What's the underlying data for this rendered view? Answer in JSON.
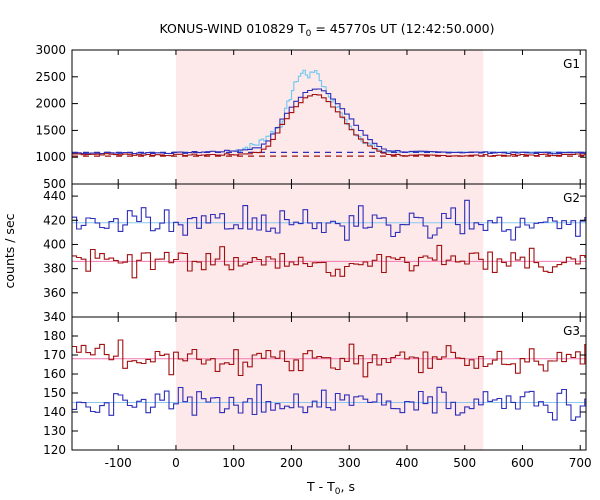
{
  "chart_data": {
    "type": "line",
    "title": {
      "prefix": "KONUS-WIND 010829 T",
      "sub": "0",
      "suffix": " = 45770s UT (12:42:50.000)"
    },
    "xlabel": {
      "prefix": "T - T",
      "sub": "0",
      "suffix": ", s"
    },
    "ylabel": "counts / sec",
    "xlim": [
      -180,
      710
    ],
    "xticks": [
      "-100",
      "0",
      "100",
      "200",
      "300",
      "400",
      "500",
      "600",
      "700"
    ],
    "highlight_interval": {
      "x": [
        0,
        532
      ],
      "color": "#fde8ea"
    },
    "colors": {
      "blue": "#2e2eb8",
      "red": "#a01010",
      "cyan": "#6ec8f0",
      "magenta": "#e0208a",
      "blue_bg": "#88c8f0",
      "red_bg": "#f07ab0"
    },
    "panels": [
      {
        "label": "G1",
        "ylim": [
          500,
          3000
        ],
        "yticks": [
          "500",
          "1000",
          "1500",
          "2000",
          "2500",
          "3000"
        ],
        "series": [
          {
            "key": "g1-high-res",
            "color": "#6ec8f0",
            "background": 1090,
            "x": [
              100,
              140,
              180,
              200,
              210,
              220,
              230,
              240,
              250,
              260,
              280,
              300,
              330,
              360
            ],
            "y": [
              1120,
              1250,
              1600,
              2250,
              2500,
              2600,
              2500,
              2650,
              2400,
              2200,
              1900,
              1550,
              1250,
              1080
            ]
          },
          {
            "key": "g1-blue",
            "color": "#2e2eb8",
            "background": 1090,
            "x": [
              -180,
              0,
              100,
              140,
              160,
              180,
              200,
              220,
              240,
              260,
              280,
              300,
              320,
              340,
              360,
              400,
              500,
              600,
              710
            ],
            "y": [
              1080,
              1080,
              1120,
              1180,
              1350,
              1700,
              2000,
              2200,
              2300,
              2200,
              1950,
              1700,
              1450,
              1250,
              1130,
              1100,
              1090,
              1080,
              1080
            ]
          },
          {
            "key": "g1-red",
            "color": "#a01010",
            "background": 1020,
            "x": [
              -180,
              0,
              100,
              140,
              160,
              180,
              200,
              220,
              240,
              260,
              280,
              300,
              320,
              340,
              360,
              400,
              500,
              600,
              710
            ],
            "y": [
              1060,
              1040,
              1050,
              1090,
              1250,
              1600,
              1900,
              2100,
              2200,
              2050,
              1800,
              1500,
              1300,
              1150,
              1060,
              1030,
              1030,
              1040,
              1050
            ]
          }
        ]
      },
      {
        "label": "G2",
        "ylim": [
          340,
          450
        ],
        "yticks": [
          "340",
          "360",
          "380",
          "400",
          "420",
          "440"
        ],
        "series": [
          {
            "key": "g2-blue",
            "color": "#2e2eb8",
            "background": 418,
            "noise": 8,
            "seed": 11
          },
          {
            "key": "g2-red",
            "color": "#a01010",
            "background": 386,
            "noise": 7,
            "seed": 23
          }
        ]
      },
      {
        "label": "G3",
        "ylim": [
          120,
          190
        ],
        "yticks": [
          "120",
          "130",
          "140",
          "150",
          "160",
          "170",
          "180"
        ],
        "series": [
          {
            "key": "g3-red",
            "color": "#a01010",
            "background": 168,
            "noise": 5,
            "seed": 37
          },
          {
            "key": "g3-blue",
            "color": "#2e2eb8",
            "background": 145,
            "noise": 5,
            "seed": 53
          }
        ]
      }
    ]
  }
}
